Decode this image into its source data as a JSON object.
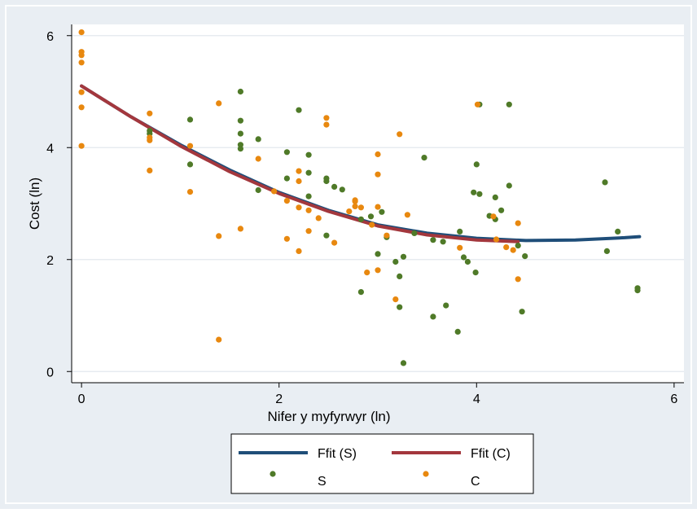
{
  "chart_data": {
    "type": "scatter",
    "xlabel": "Nifer y myfyrwyr (ln)",
    "ylabel": "Cost (ln)",
    "xlim": [
      -0.1,
      6.1
    ],
    "ylim": [
      -0.2,
      6.2
    ],
    "x_ticks": [
      0,
      2,
      4,
      6
    ],
    "y_ticks": [
      0,
      2,
      4,
      6
    ],
    "grid": true,
    "legend_position": "bottom",
    "colors": {
      "S": "#4f7a28",
      "C": "#e8880f",
      "Ffit (S)": "#1f4e79",
      "Ffit (C)": "#a3373d",
      "background": "#e9eef3",
      "plot_background": "#ffffff",
      "grid": "#e2e8ee"
    },
    "series": [
      {
        "name": "S",
        "kind": "scatter",
        "points": [
          [
            0.69,
            4.3
          ],
          [
            0.69,
            4.25
          ],
          [
            1.1,
            4.5
          ],
          [
            1.1,
            3.7
          ],
          [
            1.61,
            5.0
          ],
          [
            1.61,
            4.48
          ],
          [
            1.61,
            4.25
          ],
          [
            1.61,
            4.05
          ],
          [
            1.61,
            3.98
          ],
          [
            1.79,
            4.15
          ],
          [
            1.79,
            3.24
          ],
          [
            2.08,
            3.92
          ],
          [
            2.08,
            3.45
          ],
          [
            2.2,
            4.67
          ],
          [
            2.3,
            3.87
          ],
          [
            2.3,
            3.55
          ],
          [
            2.3,
            3.13
          ],
          [
            2.48,
            3.45
          ],
          [
            2.48,
            3.4
          ],
          [
            2.48,
            2.43
          ],
          [
            2.56,
            3.3
          ],
          [
            2.64,
            3.25
          ],
          [
            2.83,
            2.72
          ],
          [
            2.83,
            1.42
          ],
          [
            3.0,
            2.1
          ],
          [
            3.04,
            2.85
          ],
          [
            3.09,
            2.4
          ],
          [
            3.18,
            1.96
          ],
          [
            3.22,
            1.7
          ],
          [
            3.22,
            1.15
          ],
          [
            3.26,
            0.15
          ],
          [
            3.26,
            2.05
          ],
          [
            3.37,
            2.47
          ],
          [
            3.47,
            3.82
          ],
          [
            3.56,
            2.35
          ],
          [
            3.56,
            0.98
          ],
          [
            3.66,
            2.32
          ],
          [
            3.69,
            1.18
          ],
          [
            3.81,
            0.71
          ],
          [
            3.83,
            2.5
          ],
          [
            3.87,
            2.04
          ],
          [
            3.91,
            1.96
          ],
          [
            3.97,
            3.2
          ],
          [
            4.0,
            3.7
          ],
          [
            3.99,
            1.77
          ],
          [
            4.03,
            4.77
          ],
          [
            4.03,
            3.17
          ],
          [
            4.13,
            2.78
          ],
          [
            4.19,
            2.72
          ],
          [
            4.19,
            3.11
          ],
          [
            4.25,
            2.88
          ],
          [
            4.33,
            4.77
          ],
          [
            4.33,
            3.32
          ],
          [
            4.42,
            2.25
          ],
          [
            4.46,
            1.07
          ],
          [
            4.49,
            2.06
          ],
          [
            5.3,
            3.38
          ],
          [
            5.32,
            2.15
          ],
          [
            5.43,
            2.5
          ],
          [
            5.63,
            1.49
          ],
          [
            5.63,
            1.45
          ],
          [
            2.93,
            2.77
          ]
        ]
      },
      {
        "name": "C",
        "kind": "scatter",
        "points": [
          [
            0.0,
            6.06
          ],
          [
            0.0,
            5.71
          ],
          [
            0.0,
            5.65
          ],
          [
            0.0,
            5.52
          ],
          [
            0.0,
            4.99
          ],
          [
            0.0,
            4.72
          ],
          [
            0.0,
            4.03
          ],
          [
            0.69,
            4.61
          ],
          [
            0.69,
            4.18
          ],
          [
            0.69,
            4.13
          ],
          [
            0.69,
            3.59
          ],
          [
            1.1,
            4.03
          ],
          [
            1.1,
            3.21
          ],
          [
            1.39,
            4.79
          ],
          [
            1.39,
            2.42
          ],
          [
            1.39,
            0.57
          ],
          [
            1.61,
            2.55
          ],
          [
            1.79,
            3.8
          ],
          [
            1.95,
            3.22
          ],
          [
            2.08,
            3.05
          ],
          [
            2.08,
            2.37
          ],
          [
            2.2,
            3.58
          ],
          [
            2.2,
            3.4
          ],
          [
            2.2,
            2.93
          ],
          [
            2.2,
            2.15
          ],
          [
            2.3,
            2.88
          ],
          [
            2.3,
            2.51
          ],
          [
            2.4,
            2.74
          ],
          [
            2.48,
            4.53
          ],
          [
            2.48,
            4.41
          ],
          [
            2.56,
            2.3
          ],
          [
            2.71,
            2.86
          ],
          [
            2.77,
            3.06
          ],
          [
            2.77,
            3.04
          ],
          [
            2.77,
            2.95
          ],
          [
            2.83,
            2.93
          ],
          [
            2.89,
            1.77
          ],
          [
            2.94,
            2.62
          ],
          [
            3.0,
            3.88
          ],
          [
            3.0,
            3.52
          ],
          [
            3.0,
            2.94
          ],
          [
            3.0,
            1.81
          ],
          [
            3.09,
            2.43
          ],
          [
            3.18,
            1.29
          ],
          [
            3.22,
            4.24
          ],
          [
            3.3,
            2.8
          ],
          [
            3.83,
            2.21
          ],
          [
            4.01,
            4.77
          ],
          [
            4.17,
            2.77
          ],
          [
            4.3,
            2.22
          ],
          [
            4.37,
            2.17
          ],
          [
            4.42,
            2.65
          ],
          [
            4.42,
            1.65
          ],
          [
            4.2,
            2.36
          ]
        ]
      },
      {
        "name": "Ffit (S)",
        "kind": "line",
        "x": [
          0.0,
          0.5,
          1.0,
          1.5,
          2.0,
          2.5,
          3.0,
          3.5,
          4.0,
          4.5,
          5.0,
          5.5,
          5.65
        ],
        "values": [
          5.1,
          4.55,
          4.05,
          3.6,
          3.2,
          2.88,
          2.62,
          2.47,
          2.38,
          2.34,
          2.35,
          2.39,
          2.41
        ]
      },
      {
        "name": "Ffit (C)",
        "kind": "line",
        "x": [
          0.0,
          0.5,
          1.0,
          1.5,
          2.0,
          2.5,
          3.0,
          3.5,
          4.0,
          4.42
        ],
        "values": [
          5.1,
          4.55,
          4.03,
          3.57,
          3.18,
          2.86,
          2.6,
          2.44,
          2.35,
          2.32
        ]
      }
    ],
    "legend": {
      "entries": [
        {
          "label": "Ffit (S)",
          "marker": "line",
          "series": "Ffit (S)"
        },
        {
          "label": "Ffit (C)",
          "marker": "line",
          "series": "Ffit (C)"
        },
        {
          "label": "S",
          "marker": "dot",
          "series": "S"
        },
        {
          "label": "C",
          "marker": "dot",
          "series": "C"
        }
      ]
    }
  }
}
